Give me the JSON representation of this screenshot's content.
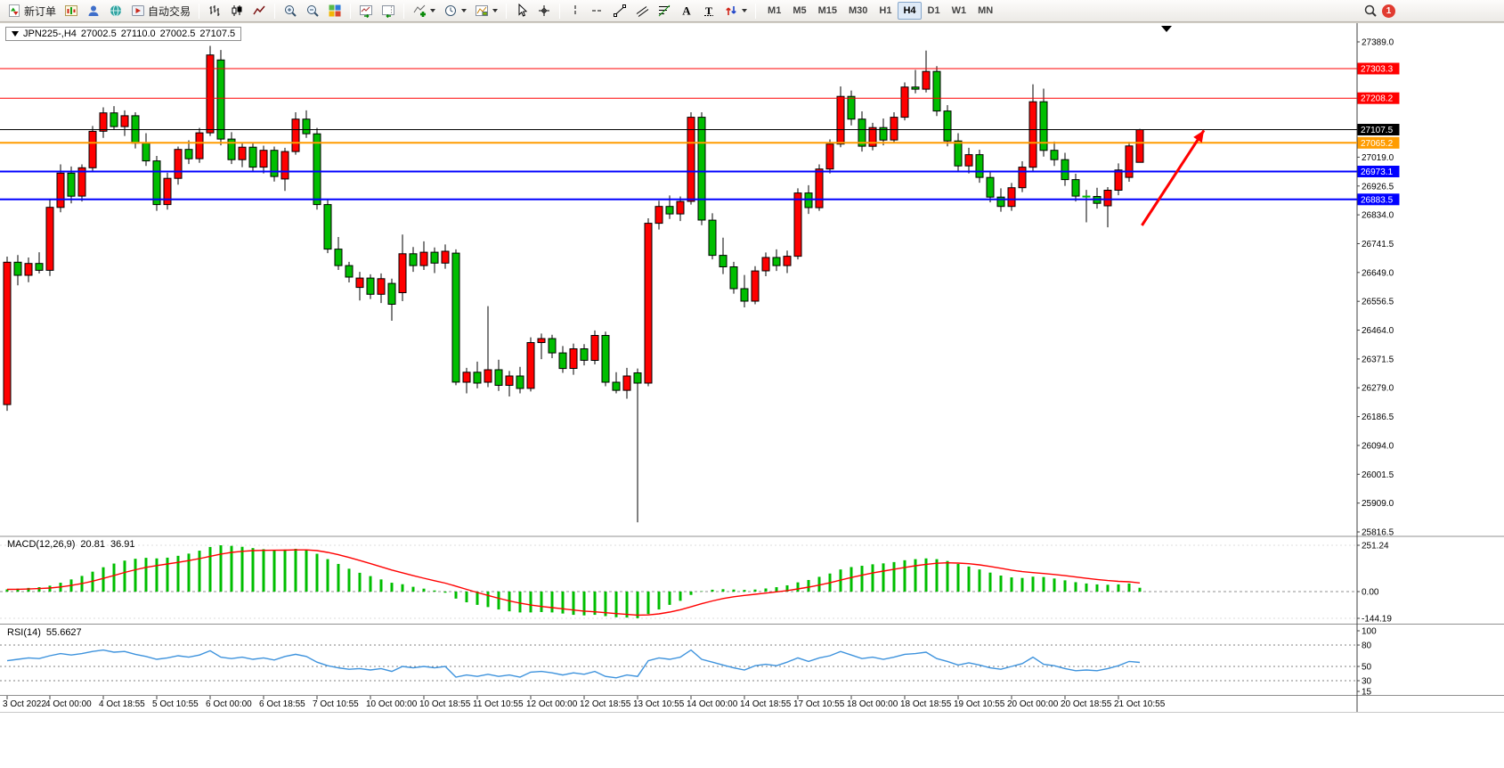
{
  "toolbar": {
    "new_order_label": "新订单",
    "autotrading_label": "自动交易",
    "timeframes": [
      "M1",
      "M5",
      "M15",
      "M30",
      "H1",
      "H4",
      "D1",
      "W1",
      "MN"
    ],
    "active_timeframe": "H4",
    "notification_count": "1"
  },
  "chart": {
    "info_box": {
      "symbol_period": "JPN225-,H4",
      "open": "27002.5",
      "high": "27110.0",
      "low": "27002.5",
      "close": "27107.5"
    }
  },
  "chart_data": {
    "type": "candlestick",
    "symbol": "JPN225-",
    "period": "H4",
    "price_axis": {
      "max": 27389.0,
      "min": 25816.5,
      "step": 92.5
    },
    "x_labels": [
      "3 Oct 2022",
      "4 Oct 00:00",
      "4 Oct 18:55",
      "5 Oct 10:55",
      "6 Oct 00:00",
      "6 Oct 18:55",
      "7 Oct 10:55",
      "10 Oct 00:00",
      "10 Oct 18:55",
      "11 Oct 10:55",
      "12 Oct 00:00",
      "12 Oct 18:55",
      "13 Oct 10:55",
      "14 Oct 00:00",
      "14 Oct 18:55",
      "17 Oct 10:55",
      "18 Oct 00:00",
      "18 Oct 18:55",
      "19 Oct 10:55",
      "20 Oct 00:00",
      "20 Oct 18:55",
      "21 Oct 10:55"
    ],
    "colors": {
      "bull": "#FF0000",
      "bear": "#00BE00",
      "wick": "#000000",
      "macd_histogram": "#00BE00",
      "macd_signal": "#FF0000",
      "rsi_line": "#3E93DD"
    },
    "horizontal_lines": [
      {
        "price": 27303.3,
        "color": "#FF0000",
        "width": 1,
        "role": "resistance-line"
      },
      {
        "price": 27208.2,
        "color": "#FF0000",
        "width": 1,
        "role": "resistance-line"
      },
      {
        "price": 27107.5,
        "color": "#000000",
        "width": 1,
        "role": "current-price-line"
      },
      {
        "price": 27065.2,
        "color": "#FF9C00",
        "width": 2,
        "role": "pivot-line"
      },
      {
        "price": 26973.1,
        "color": "#0000FF",
        "width": 2,
        "role": "support-line"
      },
      {
        "price": 26883.5,
        "color": "#0000FF",
        "width": 2,
        "role": "support-line"
      }
    ],
    "candles": [
      [
        26225,
        26700,
        26205,
        26682
      ],
      [
        26682,
        26705,
        26608,
        26640
      ],
      [
        26640,
        26697,
        26618,
        26678
      ],
      [
        26678,
        26714,
        26646,
        26656
      ],
      [
        26656,
        26882,
        26638,
        26858
      ],
      [
        26858,
        26996,
        26842,
        26968
      ],
      [
        26968,
        26989,
        26871,
        26894
      ],
      [
        26894,
        26996,
        26877,
        26985
      ],
      [
        26985,
        27119,
        26971,
        27102
      ],
      [
        27102,
        27179,
        27081,
        27161
      ],
      [
        27161,
        27183,
        27107,
        27117
      ],
      [
        27117,
        27169,
        27087,
        27152
      ],
      [
        27152,
        27163,
        27047,
        27064
      ],
      [
        27064,
        27096,
        26991,
        27007
      ],
      [
        27007,
        27023,
        26847,
        26867
      ],
      [
        26867,
        26969,
        26851,
        26951
      ],
      [
        26951,
        27053,
        26931,
        27044
      ],
      [
        27044,
        27073,
        26997,
        27014
      ],
      [
        27014,
        27113,
        27001,
        27097
      ],
      [
        27097,
        27376,
        27087,
        27347
      ],
      [
        27331,
        27363,
        27057,
        27077
      ],
      [
        27077,
        27099,
        26997,
        27011
      ],
      [
        27011,
        27063,
        26987,
        27051
      ],
      [
        27051,
        27063,
        26971,
        26987
      ],
      [
        26987,
        27056,
        26967,
        27041
      ],
      [
        27041,
        27053,
        26941,
        26957
      ],
      [
        26949,
        27049,
        26911,
        27037
      ],
      [
        27037,
        27163,
        27027,
        27141
      ],
      [
        27141,
        27169,
        27081,
        27094
      ],
      [
        27094,
        27113,
        26851,
        26867
      ],
      [
        26867,
        26883,
        26711,
        26724
      ],
      [
        26724,
        26763,
        26657,
        26671
      ],
      [
        26671,
        26683,
        26617,
        26634
      ],
      [
        26601,
        26651,
        26559,
        26631
      ],
      [
        26631,
        26643,
        26564,
        26579
      ],
      [
        26579,
        26646,
        26551,
        26629
      ],
      [
        26614,
        26629,
        26494,
        26547
      ],
      [
        26584,
        26771,
        26557,
        26709
      ],
      [
        26709,
        26731,
        26651,
        26671
      ],
      [
        26671,
        26749,
        26657,
        26714
      ],
      [
        26714,
        26729,
        26647,
        26679
      ],
      [
        26679,
        26739,
        26661,
        26717
      ],
      [
        26711,
        26723,
        26287,
        26297
      ],
      [
        26297,
        26343,
        26261,
        26329
      ],
      [
        26329,
        26363,
        26277,
        26294
      ],
      [
        26297,
        26541,
        26281,
        26337
      ],
      [
        26337,
        26369,
        26269,
        26287
      ],
      [
        26287,
        26333,
        26251,
        26317
      ],
      [
        26317,
        26346,
        26261,
        26277
      ],
      [
        26277,
        26441,
        26267,
        26424
      ],
      [
        26424,
        26453,
        26371,
        26437
      ],
      [
        26437,
        26449,
        26374,
        26391
      ],
      [
        26391,
        26413,
        26327,
        26341
      ],
      [
        26341,
        26421,
        26321,
        26404
      ],
      [
        26404,
        26419,
        26351,
        26367
      ],
      [
        26367,
        26463,
        26354,
        26447
      ],
      [
        26447,
        26459,
        26284,
        26297
      ],
      [
        26297,
        26329,
        26261,
        26271
      ],
      [
        26271,
        26343,
        26244,
        26317
      ],
      [
        26327,
        26341,
        25847,
        26294
      ],
      [
        26294,
        26823,
        26284,
        26807
      ],
      [
        26807,
        26879,
        26787,
        26861
      ],
      [
        26861,
        26896,
        26821,
        26837
      ],
      [
        26837,
        26893,
        26814,
        26877
      ],
      [
        26877,
        27163,
        26867,
        27147
      ],
      [
        27147,
        27163,
        26801,
        26817
      ],
      [
        26817,
        26839,
        26691,
        26704
      ],
      [
        26704,
        26761,
        26644,
        26667
      ],
      [
        26667,
        26683,
        26581,
        26597
      ],
      [
        26597,
        26641,
        26537,
        26557
      ],
      [
        26557,
        26669,
        26547,
        26654
      ],
      [
        26654,
        26713,
        26637,
        26697
      ],
      [
        26697,
        26723,
        26654,
        26671
      ],
      [
        26671,
        26719,
        26647,
        26701
      ],
      [
        26701,
        26919,
        26691,
        26904
      ],
      [
        26904,
        26929,
        26837,
        26857
      ],
      [
        26857,
        26996,
        26847,
        26981
      ],
      [
        26981,
        27076,
        26967,
        27061
      ],
      [
        27061,
        27246,
        27051,
        27214
      ],
      [
        27214,
        27233,
        27121,
        27141
      ],
      [
        27141,
        27166,
        27037,
        27054
      ],
      [
        27054,
        27129,
        27041,
        27114
      ],
      [
        27114,
        27143,
        27057,
        27074
      ],
      [
        27074,
        27163,
        27064,
        27147
      ],
      [
        27147,
        27259,
        27137,
        27244
      ],
      [
        27244,
        27299,
        27224,
        27237
      ],
      [
        27237,
        27361,
        27227,
        27294
      ],
      [
        27294,
        27311,
        27151,
        27167
      ],
      [
        27167,
        27186,
        27054,
        27071
      ],
      [
        27071,
        27096,
        26974,
        26991
      ],
      [
        26991,
        27049,
        26967,
        27027
      ],
      [
        27027,
        27043,
        26937,
        26954
      ],
      [
        26954,
        26973,
        26874,
        26891
      ],
      [
        26891,
        26919,
        26844,
        26861
      ],
      [
        26861,
        26936,
        26847,
        26921
      ],
      [
        26921,
        27006,
        26907,
        26987
      ],
      [
        26987,
        27253,
        26974,
        27197
      ],
      [
        27197,
        27239,
        27021,
        27041
      ],
      [
        27041,
        27069,
        26991,
        27011
      ],
      [
        27011,
        27033,
        26927,
        26947
      ],
      [
        26947,
        26966,
        26877,
        26894
      ],
      [
        26894,
        26914,
        26810,
        26893
      ],
      [
        26893,
        26921,
        26854,
        26871
      ],
      [
        26863,
        26923,
        26794,
        26913
      ],
      [
        26913,
        26999,
        26897,
        26978
      ],
      [
        26954,
        27068,
        26940,
        27055
      ],
      [
        27002.5,
        27110.0,
        27002.5,
        27107.5
      ]
    ],
    "macd": {
      "label": "MACD(12,26,9)",
      "value_main": "20.81",
      "value_signal": "36.91",
      "scale_labels": [
        "251.24",
        "0.00",
        "-144.19"
      ],
      "signal_ema_period": 9,
      "histogram": [
        12,
        16,
        20,
        24,
        32,
        48,
        66,
        85,
        108,
        132,
        152,
        168,
        178,
        183,
        180,
        184,
        194,
        206,
        222,
        242,
        251.24,
        248,
        243,
        236,
        230,
        226,
        228,
        232,
        226,
        205,
        176,
        150,
        124,
        102,
        84,
        66,
        48,
        40,
        26,
        16,
        6,
        -6,
        -38,
        -58,
        -72,
        -84,
        -97,
        -107,
        -113,
        -113,
        -111,
        -113,
        -119,
        -126,
        -129,
        -126,
        -133,
        -139,
        -141,
        -144.19,
        -122,
        -97,
        -72,
        -50,
        -18,
        2,
        10,
        13,
        11,
        9,
        11,
        17,
        24,
        34,
        50,
        63,
        80,
        98,
        120,
        133,
        140,
        148,
        153,
        160,
        170,
        176,
        180,
        176,
        166,
        150,
        136,
        120,
        103,
        87,
        77,
        74,
        81,
        79,
        71,
        61,
        51,
        44,
        39,
        37,
        39,
        44,
        20.81
      ]
    },
    "rsi": {
      "label": "RSI(14)",
      "value": "55.6627",
      "scale_labels": [
        "100",
        "80",
        "50",
        "30",
        "15"
      ],
      "level_lines": [
        80,
        50,
        30
      ],
      "values": [
        58,
        60,
        62,
        61,
        65,
        68,
        66,
        68,
        71,
        73,
        70,
        71,
        67,
        64,
        60,
        62,
        65,
        63,
        66,
        72,
        63,
        61,
        63,
        60,
        62,
        59,
        64,
        67,
        64,
        56,
        51,
        48,
        46,
        47,
        45,
        47,
        43,
        50,
        48,
        50,
        48,
        50,
        35,
        38,
        36,
        39,
        36,
        38,
        35,
        42,
        43,
        41,
        38,
        41,
        39,
        43,
        36,
        34,
        38,
        36,
        58,
        62,
        60,
        63,
        73,
        60,
        56,
        52,
        48,
        45,
        51,
        53,
        51,
        56,
        62,
        57,
        62,
        65,
        71,
        66,
        61,
        63,
        60,
        63,
        67,
        68,
        70,
        61,
        57,
        52,
        55,
        52,
        48,
        46,
        50,
        54,
        63,
        53,
        51,
        47,
        44,
        45,
        44,
        47,
        51,
        57,
        55.6627
      ]
    },
    "annotation_arrow": {
      "color": "#FF0000",
      "from_bar": 106.2,
      "from_price": 26800,
      "to_bar": 112,
      "to_price": 27105
    }
  }
}
